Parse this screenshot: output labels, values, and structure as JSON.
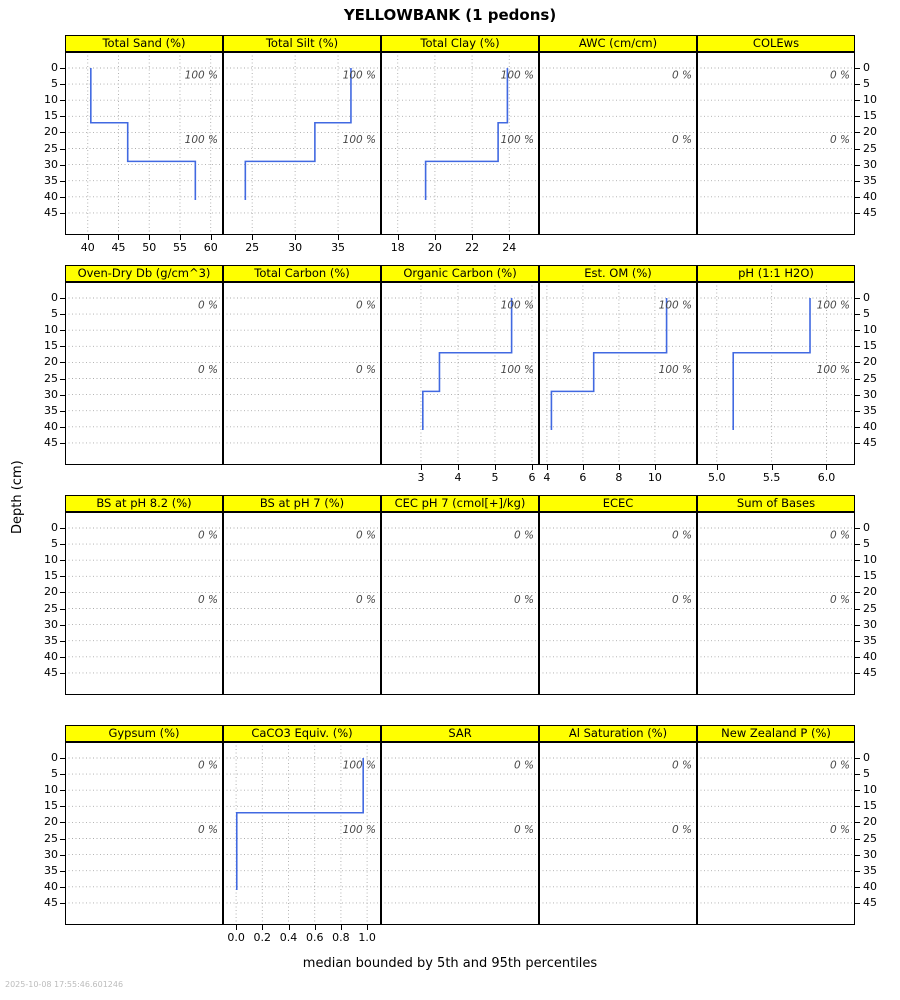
{
  "title": "YELLOWBANK (1 pedons)",
  "ylabel": "Depth (cm)",
  "caption": "median bounded by 5th and 95th percentiles",
  "timestamp": "2025-10-08 17:55:46.601246",
  "chart_data": {
    "type": "line",
    "layout": "lattice 4 rows x 5 cols, soil depth profiles (depth increases downward)",
    "title": "YELLOWBANK (1 pedons)",
    "ylabel": "Depth (cm)",
    "y_ticks": [
      0,
      5,
      10,
      15,
      20,
      25,
      30,
      35,
      40,
      45
    ],
    "y_range": [
      -5,
      52
    ],
    "line_color": "#4169E1",
    "strip_color": "#FFFF00",
    "grid_color": "#ababab",
    "annotation_color": "#474747",
    "panels": [
      {
        "title": "Total Sand (%)",
        "x_tick_labels": [
          "40",
          "45",
          "50",
          "55",
          "60"
        ],
        "x_tick_values": [
          40,
          45,
          50,
          55,
          60
        ],
        "x_range": [
          36.3,
          62.0
        ],
        "horizons": [
          {
            "top": 0,
            "bottom": 17,
            "value": 40.5
          },
          {
            "top": 17,
            "bottom": 29,
            "value": 46.5
          },
          {
            "top": 29,
            "bottom": 41,
            "value": 57.5
          }
        ],
        "annotations": [
          {
            "depth": 2,
            "label": "100 %"
          },
          {
            "depth": 22,
            "label": "100 %"
          }
        ]
      },
      {
        "title": "Total Silt (%)",
        "x_tick_labels": [
          "25",
          "30",
          "35"
        ],
        "x_tick_values": [
          25,
          30,
          35
        ],
        "x_range": [
          21.6,
          40.0
        ],
        "horizons": [
          {
            "top": 0,
            "bottom": 17,
            "value": 36.5
          },
          {
            "top": 17,
            "bottom": 29,
            "value": 32.3
          },
          {
            "top": 29,
            "bottom": 41,
            "value": 24.2
          }
        ],
        "annotations": [
          {
            "depth": 2,
            "label": "100 %"
          },
          {
            "depth": 22,
            "label": "100 %"
          }
        ]
      },
      {
        "title": "Total Clay (%)",
        "x_tick_labels": [
          "18",
          "20",
          "22",
          "24"
        ],
        "x_tick_values": [
          18,
          20,
          22,
          24
        ],
        "x_range": [
          17.1,
          25.6
        ],
        "horizons": [
          {
            "top": 0,
            "bottom": 17,
            "value": 23.9
          },
          {
            "top": 17,
            "bottom": 29,
            "value": 23.4
          },
          {
            "top": 29,
            "bottom": 41,
            "value": 19.5
          }
        ],
        "annotations": [
          {
            "depth": 2,
            "label": "100 %"
          },
          {
            "depth": 22,
            "label": "100 %"
          }
        ]
      },
      {
        "title": "AWC (cm/cm)",
        "x_tick_labels": null,
        "x_tick_values": null,
        "x_range": null,
        "horizons": null,
        "annotations": [
          {
            "depth": 2,
            "label": "0 %"
          },
          {
            "depth": 22,
            "label": "0 %"
          }
        ]
      },
      {
        "title": "COLEws",
        "x_tick_labels": null,
        "x_tick_values": null,
        "x_range": null,
        "horizons": null,
        "annotations": [
          {
            "depth": 2,
            "label": "0 %"
          },
          {
            "depth": 22,
            "label": "0 %"
          }
        ]
      },
      {
        "title": "Oven-Dry Db (g/cm^3)",
        "x_tick_labels": null,
        "x_tick_values": null,
        "x_range": null,
        "horizons": null,
        "annotations": [
          {
            "depth": 2,
            "label": "0 %"
          },
          {
            "depth": 22,
            "label": "0 %"
          }
        ]
      },
      {
        "title": "Total Carbon (%)",
        "x_tick_labels": null,
        "x_tick_values": null,
        "x_range": null,
        "horizons": null,
        "annotations": [
          {
            "depth": 2,
            "label": "0 %"
          },
          {
            "depth": 22,
            "label": "0 %"
          }
        ]
      },
      {
        "title": "Organic Carbon (%)",
        "x_tick_labels": [
          "3",
          "4",
          "5",
          "6"
        ],
        "x_tick_values": [
          3,
          4,
          5,
          6
        ],
        "x_range": [
          1.92,
          6.19
        ],
        "horizons": [
          {
            "top": 0,
            "bottom": 17,
            "value": 5.45
          },
          {
            "top": 17,
            "bottom": 29,
            "value": 3.5
          },
          {
            "top": 29,
            "bottom": 41,
            "value": 3.05
          }
        ],
        "annotations": [
          {
            "depth": 2,
            "label": "100 %"
          },
          {
            "depth": 22,
            "label": "100 %"
          }
        ]
      },
      {
        "title": "Est. OM (%)",
        "x_tick_labels": [
          "4",
          "6",
          "8",
          "10"
        ],
        "x_tick_values": [
          4,
          6,
          8,
          10
        ],
        "x_range": [
          3.56,
          12.34
        ],
        "horizons": [
          {
            "top": 0,
            "bottom": 17,
            "value": 10.65
          },
          {
            "top": 17,
            "bottom": 29,
            "value": 6.6
          },
          {
            "top": 29,
            "bottom": 41,
            "value": 4.25
          }
        ],
        "annotations": [
          {
            "depth": 2,
            "label": "100 %"
          },
          {
            "depth": 22,
            "label": "100 %"
          }
        ]
      },
      {
        "title": "pH (1:1 H2O)",
        "x_tick_labels": [
          "5.0",
          "5.5",
          "6.0"
        ],
        "x_tick_values": [
          5.0,
          5.5,
          6.0
        ],
        "x_range": [
          4.82,
          6.26
        ],
        "horizons": [
          {
            "top": 0,
            "bottom": 17,
            "value": 5.85
          },
          {
            "top": 17,
            "bottom": 41,
            "value": 5.15
          }
        ],
        "annotations": [
          {
            "depth": 2,
            "label": "100 %"
          },
          {
            "depth": 22,
            "label": "100 %"
          }
        ]
      },
      {
        "title": "BS at pH 8.2 (%)",
        "x_tick_labels": null,
        "x_tick_values": null,
        "x_range": null,
        "horizons": null,
        "annotations": [
          {
            "depth": 2,
            "label": "0 %"
          },
          {
            "depth": 22,
            "label": "0 %"
          }
        ]
      },
      {
        "title": "BS at pH 7 (%)",
        "x_tick_labels": null,
        "x_tick_values": null,
        "x_range": null,
        "horizons": null,
        "annotations": [
          {
            "depth": 2,
            "label": "0 %"
          },
          {
            "depth": 22,
            "label": "0 %"
          }
        ]
      },
      {
        "title": "CEC pH 7 (cmol[+]/kg)",
        "x_tick_labels": null,
        "x_tick_values": null,
        "x_range": null,
        "horizons": null,
        "annotations": [
          {
            "depth": 2,
            "label": "0 %"
          },
          {
            "depth": 22,
            "label": "0 %"
          }
        ]
      },
      {
        "title": "ECEC",
        "x_tick_labels": null,
        "x_tick_values": null,
        "x_range": null,
        "horizons": null,
        "annotations": [
          {
            "depth": 2,
            "label": "0 %"
          },
          {
            "depth": 22,
            "label": "0 %"
          }
        ]
      },
      {
        "title": "Sum of Bases",
        "x_tick_labels": null,
        "x_tick_values": null,
        "x_range": null,
        "horizons": null,
        "annotations": [
          {
            "depth": 2,
            "label": "0 %"
          },
          {
            "depth": 22,
            "label": "0 %"
          }
        ]
      },
      {
        "title": "Gypsum (%)",
        "x_tick_labels": null,
        "x_tick_values": null,
        "x_range": null,
        "horizons": null,
        "annotations": [
          {
            "depth": 2,
            "label": "0 %"
          },
          {
            "depth": 22,
            "label": "0 %"
          }
        ]
      },
      {
        "title": "CaCO3 Equiv. (%)",
        "x_tick_labels": [
          "0.0",
          "0.2",
          "0.4",
          "0.6",
          "0.8",
          "1.0"
        ],
        "x_tick_values": [
          0.0,
          0.2,
          0.4,
          0.6,
          0.8,
          1.0
        ],
        "x_range": [
          -0.1,
          1.106
        ],
        "horizons": [
          {
            "top": 0,
            "bottom": 17,
            "value": 0.97
          },
          {
            "top": 17,
            "bottom": 41,
            "value": 0.005
          }
        ],
        "annotations": [
          {
            "depth": 2,
            "label": "100 %"
          },
          {
            "depth": 22,
            "label": "100 %"
          }
        ]
      },
      {
        "title": "SAR",
        "x_tick_labels": null,
        "x_tick_values": null,
        "x_range": null,
        "horizons": null,
        "annotations": [
          {
            "depth": 2,
            "label": "0 %"
          },
          {
            "depth": 22,
            "label": "0 %"
          }
        ]
      },
      {
        "title": "Al Saturation (%)",
        "x_tick_labels": null,
        "x_tick_values": null,
        "x_range": null,
        "horizons": null,
        "annotations": [
          {
            "depth": 2,
            "label": "0 %"
          },
          {
            "depth": 22,
            "label": "0 %"
          }
        ]
      },
      {
        "title": "New Zealand P (%)",
        "x_tick_labels": null,
        "x_tick_values": null,
        "x_range": null,
        "horizons": null,
        "annotations": [
          {
            "depth": 2,
            "label": "0 %"
          },
          {
            "depth": 22,
            "label": "0 %"
          }
        ]
      }
    ]
  }
}
